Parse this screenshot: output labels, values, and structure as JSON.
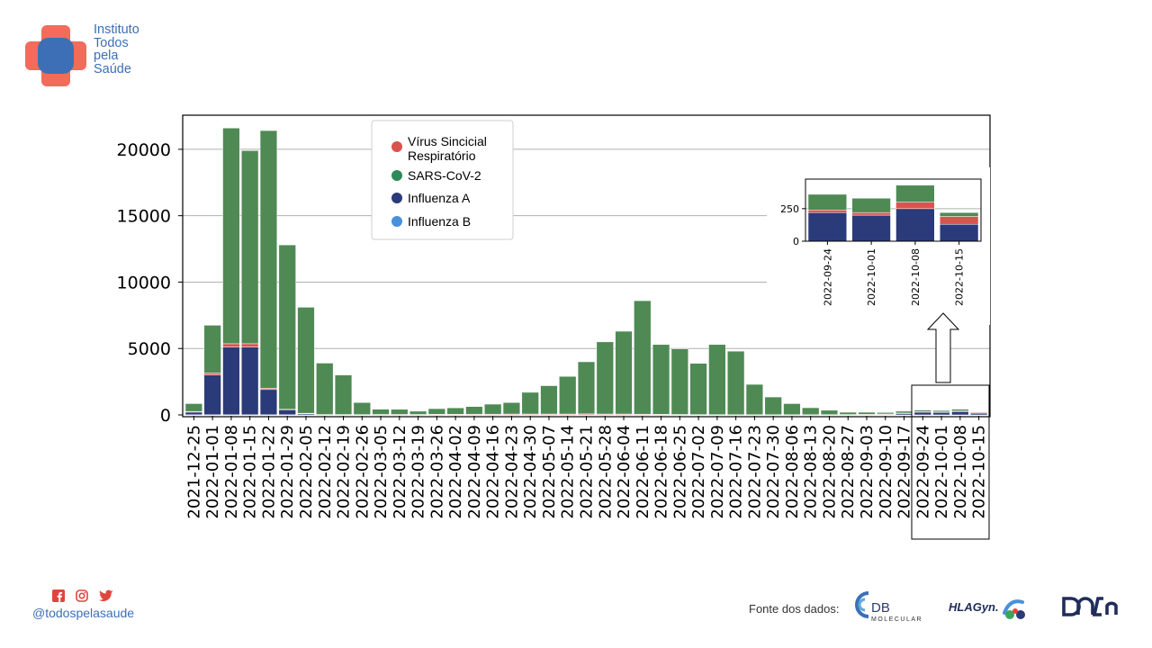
{
  "header": {
    "logo_lines": [
      "Instituto",
      "Todos",
      "pela",
      "Saúde"
    ]
  },
  "footer": {
    "social_icons": [
      "facebook-icon",
      "instagram-icon",
      "twitter-icon"
    ],
    "handle": "@todospelasaude",
    "source_label": "Fonte dos dados:",
    "source_logos": [
      {
        "name": "DB Molecular",
        "text_main": "DB",
        "text_sub": "MOLECULAR"
      },
      {
        "name": "HLAGyn",
        "text_main": "HLAGyn."
      },
      {
        "name": "Dasa",
        "text_main": "DASA"
      }
    ]
  },
  "colors": {
    "rsv": "#d9534f",
    "sars": "#4f8a55",
    "sars_legend": "#2e8b57",
    "flu_a": "#2b3a78",
    "flu_b": "#4a90d9",
    "brand_blue": "#3d6fb6",
    "brand_red": "#f26b5b"
  },
  "chart_data": [
    {
      "type": "bar",
      "stacked": true,
      "categories": [
        "2021-12-25",
        "2022-01-01",
        "2022-01-08",
        "2022-01-15",
        "2022-01-22",
        "2022-01-29",
        "2022-02-05",
        "2022-02-12",
        "2022-02-19",
        "2022-02-26",
        "2022-03-05",
        "2022-03-12",
        "2022-03-19",
        "2022-03-26",
        "2022-04-02",
        "2022-04-09",
        "2022-04-16",
        "2022-04-23",
        "2022-04-30",
        "2022-05-07",
        "2022-05-14",
        "2022-05-21",
        "2022-05-28",
        "2022-06-04",
        "2022-06-11",
        "2022-06-18",
        "2022-06-25",
        "2022-07-02",
        "2022-07-09",
        "2022-07-16",
        "2022-07-23",
        "2022-07-30",
        "2022-08-06",
        "2022-08-13",
        "2022-08-20",
        "2022-08-27",
        "2022-09-03",
        "2022-09-10",
        "2022-09-17",
        "2022-09-24",
        "2022-10-01",
        "2022-10-08",
        "2022-10-15"
      ],
      "series": [
        {
          "name": "Influenza B",
          "values": [
            10,
            10,
            10,
            10,
            10,
            10,
            5,
            0,
            0,
            0,
            0,
            0,
            0,
            0,
            0,
            0,
            0,
            0,
            0,
            0,
            0,
            0,
            0,
            0,
            0,
            0,
            0,
            0,
            0,
            0,
            0,
            0,
            0,
            0,
            0,
            0,
            0,
            0,
            0,
            0,
            0,
            0,
            0
          ]
        },
        {
          "name": "Influenza A",
          "values": [
            200,
            3000,
            5100,
            5100,
            1900,
            380,
            100,
            20,
            10,
            5,
            5,
            5,
            5,
            5,
            5,
            5,
            5,
            5,
            5,
            5,
            5,
            5,
            5,
            5,
            5,
            5,
            5,
            5,
            5,
            5,
            5,
            5,
            5,
            5,
            10,
            20,
            30,
            60,
            120,
            220,
            200,
            250,
            130
          ]
        },
        {
          "name": "Vírus Sincicial Respiratório",
          "values": [
            50,
            150,
            250,
            250,
            100,
            30,
            20,
            10,
            20,
            20,
            30,
            30,
            30,
            40,
            40,
            50,
            50,
            60,
            60,
            60,
            60,
            70,
            60,
            60,
            50,
            40,
            30,
            20,
            15,
            10,
            10,
            10,
            10,
            10,
            10,
            10,
            10,
            10,
            20,
            20,
            20,
            50,
            60
          ]
        },
        {
          "name": "SARS-CoV-2",
          "values": [
            590,
            3590,
            16240,
            14540,
            19400,
            12380,
            7980,
            3870,
            2970,
            905,
            395,
            385,
            245,
            425,
            485,
            575,
            755,
            865,
            1635,
            2135,
            2835,
            3925,
            5435,
            6235,
            8545,
            5255,
            4935,
            3855,
            5280,
            4785,
            2285,
            1335,
            835,
            525,
            330,
            170,
            160,
            110,
            140,
            120,
            110,
            130,
            30
          ]
        }
      ],
      "ylim": [
        0,
        22500
      ],
      "yticks": [
        0,
        5000,
        10000,
        15000,
        20000
      ],
      "legend_entries": [
        "Vírus Sincicial Respiratório",
        "SARS-CoV-2",
        "Influenza A",
        "Influenza B"
      ],
      "legend_placement": "top-center",
      "grid": "horizontal"
    },
    {
      "type": "bar",
      "stacked": true,
      "categories": [
        "2022-09-24",
        "2022-10-01",
        "2022-10-08",
        "2022-10-15"
      ],
      "series": [
        {
          "name": "Influenza A",
          "values": [
            220,
            200,
            250,
            130
          ]
        },
        {
          "name": "Vírus Sincicial Respiratório",
          "values": [
            20,
            20,
            50,
            60
          ]
        },
        {
          "name": "SARS-CoV-2",
          "values": [
            120,
            110,
            130,
            30
          ]
        }
      ],
      "ylim": [
        0,
        470
      ],
      "yticks": [
        0,
        250
      ],
      "grid": "horizontal"
    }
  ]
}
